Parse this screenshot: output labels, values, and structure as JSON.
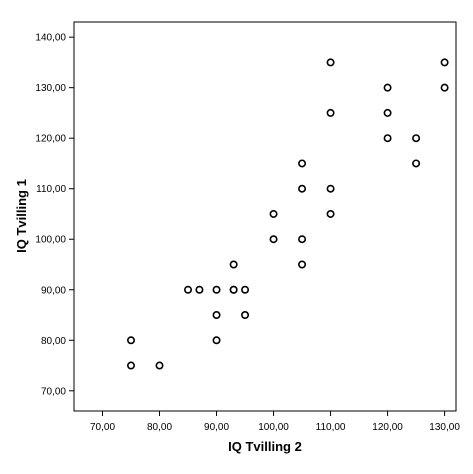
{
  "chart_data": {
    "type": "scatter",
    "xlabel": "IQ Tvilling 2",
    "ylabel": "IQ Tvilling 1",
    "xlim": [
      65,
      132
    ],
    "ylim": [
      66,
      143
    ],
    "grid": false,
    "x_ticks": [
      70,
      80,
      90,
      100,
      110,
      120,
      130
    ],
    "y_ticks": [
      70,
      80,
      90,
      100,
      110,
      120,
      130,
      140
    ],
    "x_tick_labels": [
      "70,00",
      "80,00",
      "90,00",
      "100,00",
      "110,00",
      "120,00",
      "130,00"
    ],
    "y_tick_labels": [
      "70,00",
      "80,00",
      "90,00",
      "100,00",
      "110,00",
      "120,00",
      "130,00",
      "140,00"
    ],
    "marker_color": "#000000",
    "series": [
      {
        "x": [
          75,
          75,
          80,
          85,
          87,
          90,
          90,
          90,
          93,
          93,
          93,
          95,
          95,
          100,
          100,
          105,
          105,
          105,
          105,
          110,
          110,
          110,
          110,
          120,
          120,
          120,
          125,
          125,
          130,
          130
        ],
        "y": [
          80,
          75,
          75,
          90,
          90,
          90,
          85,
          80,
          95,
          90,
          90,
          90,
          85,
          105,
          100,
          115,
          110,
          100,
          95,
          135,
          125,
          110,
          105,
          130,
          125,
          120,
          120,
          115,
          135,
          130
        ]
      }
    ]
  }
}
